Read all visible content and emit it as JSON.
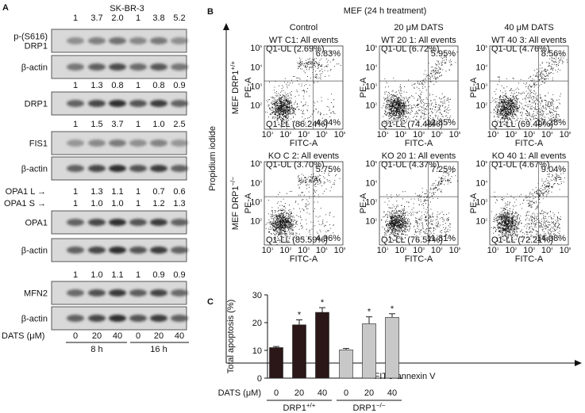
{
  "panel_a": {
    "label": "A",
    "title": "SK-BR-3",
    "groups": [
      {
        "quant": [
          {
            "values": [
              "1",
              "3.7",
              "2.0",
              "1",
              "3.8",
              "5.2"
            ]
          }
        ],
        "blots": [
          {
            "label_lines": [
              "p-(S616)",
              "DRP1"
            ]
          },
          {
            "label_lines": [
              "β-actin"
            ]
          }
        ]
      },
      {
        "quant": [
          {
            "values": [
              "1",
              "1.3",
              "0.8",
              "1",
              "0.8",
              "0.9"
            ]
          }
        ],
        "blots": [
          {
            "label_lines": [
              "DRP1"
            ]
          }
        ]
      },
      {
        "quant": [
          {
            "values": [
              "1",
              "1.5",
              "3.7",
              "1",
              "1.0",
              "2.5"
            ]
          }
        ],
        "blots": [
          {
            "label_lines": [
              "FIS1"
            ]
          },
          {
            "label_lines": [
              "β-actin"
            ]
          }
        ]
      },
      {
        "quant": [
          {
            "label": "OPA1 L →",
            "values": [
              "1",
              "1.3",
              "1.1",
              "1",
              "0.7",
              "0.6"
            ]
          },
          {
            "label": "OPA1 S →",
            "values": [
              "1",
              "1.0",
              "1.0",
              "1",
              "1.2",
              "1.3"
            ]
          }
        ],
        "blots": [
          {
            "label_lines": [
              "OPA1"
            ]
          },
          {
            "label_lines": [
              "β-actin"
            ]
          }
        ]
      },
      {
        "quant": [
          {
            "values": [
              "1",
              "1.0",
              "1.1",
              "1",
              "0.9",
              "0.9"
            ]
          }
        ],
        "blots": [
          {
            "label_lines": [
              "MFN2"
            ]
          },
          {
            "label_lines": [
              "β-actin"
            ]
          }
        ]
      }
    ],
    "dose_label": "DATS (μM)",
    "doses": [
      "0",
      "20",
      "40",
      "0",
      "20",
      "40"
    ],
    "times": [
      "8 h",
      "16 h"
    ]
  },
  "panel_b": {
    "label": "B",
    "title": "MEF (24 h treatment)",
    "columns": [
      "Control",
      "20 μM DATS",
      "40 μM DATS"
    ],
    "rows": [
      {
        "base": "MEF DRP1",
        "sup": "+/+"
      },
      {
        "base": "MEF DRP1",
        "sup": "−/−"
      }
    ],
    "y_label": "Propidium iodide",
    "x_label": "FITC-annexin V",
    "tick_base": "10",
    "tick_exps": [
      "1",
      "2",
      "3",
      "4",
      "5"
    ],
    "plot_y_label": "PE-A",
    "plot_x_label": "FITC-A",
    "plots": [
      {
        "title": "WT C1: All events",
        "ul": "Q1-UL (2.69%)",
        "ur": "6.83%",
        "ll": "Q1-LL (86.24%)",
        "lr": "4.04%"
      },
      {
        "title": "WT 20 1: All events",
        "ul": "Q1-UL (6.72%)",
        "ur": "5.95%",
        "ll": "Q1-LL (74.48%)",
        "lr": "12.85%"
      },
      {
        "title": "WT 40 3: All events",
        "ul": "Q1-UL (4.76%)",
        "ur": "8.56%",
        "ll": "Q1-LL (69.40%)",
        "lr": "17.28%"
      },
      {
        "title": "KO C 2: All events",
        "ul": "Q1-UL (3.70%)",
        "ur": "5.75%",
        "ll": "Q1-LL (85.59%)",
        "lr": "4.96%"
      },
      {
        "title": "KO 20 1: All events",
        "ul": "Q1-UL (4.37%)",
        "ur": "7.25%",
        "ll": "Q1-LL (76.57%)",
        "lr": "11.81%"
      },
      {
        "title": "KO 40 1: All events",
        "ul": "Q1-UL (4.67%)",
        "ur": "9.04%",
        "ll": "Q1-LL (72.21%)",
        "lr": "14.08%"
      }
    ]
  },
  "chart_data": {
    "type": "bar",
    "panel_label": "C",
    "y_label": "Total apoptosis (%)",
    "x_label": "DATS (μM)",
    "categories": [
      "0",
      "20",
      "40"
    ],
    "ylim": [
      0,
      30
    ],
    "yticks": [
      0,
      10,
      20,
      30
    ],
    "series": [
      {
        "name": "DRP1",
        "name_sup": "+/+",
        "color": "#2b1718",
        "values": [
          11,
          19.2,
          23.7
        ],
        "errors": [
          0.4,
          1.8,
          1.7
        ],
        "annotations": [
          null,
          "*",
          "*"
        ]
      },
      {
        "name": "DRP1",
        "name_sup": "−/−",
        "color": "#c8c8c8",
        "values": [
          10.2,
          19.6,
          21.9
        ],
        "errors": [
          0.5,
          2.5,
          1.3
        ],
        "annotations": [
          null,
          "*",
          "*"
        ]
      }
    ]
  }
}
